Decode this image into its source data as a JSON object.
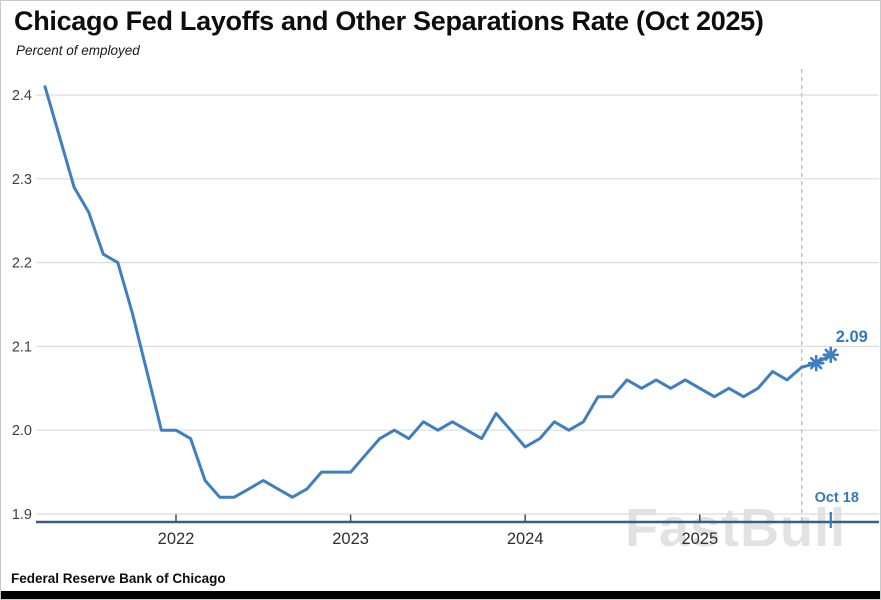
{
  "header": {
    "title": "Chicago Fed Layoffs and Other Separations Rate (Oct 2025)",
    "subtitle": "Percent of employed"
  },
  "footer": {
    "source": "Federal Reserve Bank of Chicago"
  },
  "watermark": "FastBull",
  "colors": {
    "line": "#3f7fbf",
    "axis": "#3a5f80",
    "grid": "#dcdcdc",
    "dashed_line": "#bdbdbd",
    "annotation": "#3478be",
    "tick": "#4d4d4d",
    "y_label": "#3f3f3f",
    "x_label": "#2f2f2f",
    "bottom_bar": "#000000"
  },
  "chart_data": {
    "type": "line",
    "title": "Chicago Fed Layoffs and Other Separations Rate (Oct 2025)",
    "ylabel": "Percent of employed",
    "ylim": [
      1.9,
      2.41
    ],
    "yticks": [
      1.9,
      2.0,
      2.1,
      2.2,
      2.3,
      2.4
    ],
    "xticks": [
      "2022",
      "2023",
      "2024",
      "2025"
    ],
    "grid": true,
    "legend_position": "none",
    "series": [
      {
        "name": "Layoffs and other separations rate (percent of employed)",
        "points": [
          [
            "2021-04",
            2.41
          ],
          [
            "2021-05",
            2.35
          ],
          [
            "2021-06",
            2.29
          ],
          [
            "2021-07",
            2.26
          ],
          [
            "2021-08",
            2.21
          ],
          [
            "2021-09",
            2.2
          ],
          [
            "2021-10",
            2.14
          ],
          [
            "2021-11",
            2.07
          ],
          [
            "2021-12",
            2.0
          ],
          [
            "2022-01",
            2.0
          ],
          [
            "2022-02",
            1.99
          ],
          [
            "2022-03",
            1.94
          ],
          [
            "2022-04",
            1.92
          ],
          [
            "2022-05",
            1.92
          ],
          [
            "2022-06",
            1.93
          ],
          [
            "2022-07",
            1.94
          ],
          [
            "2022-08",
            1.93
          ],
          [
            "2022-09",
            1.92
          ],
          [
            "2022-10",
            1.93
          ],
          [
            "2022-11",
            1.95
          ],
          [
            "2022-12",
            1.95
          ],
          [
            "2023-01",
            1.95
          ],
          [
            "2023-02",
            1.97
          ],
          [
            "2023-03",
            1.99
          ],
          [
            "2023-04",
            2.0
          ],
          [
            "2023-05",
            1.99
          ],
          [
            "2023-06",
            2.01
          ],
          [
            "2023-07",
            2.0
          ],
          [
            "2023-08",
            2.01
          ],
          [
            "2023-09",
            2.0
          ],
          [
            "2023-10",
            1.99
          ],
          [
            "2023-11",
            2.02
          ],
          [
            "2023-12",
            2.0
          ],
          [
            "2024-01",
            1.98
          ],
          [
            "2024-02",
            1.99
          ],
          [
            "2024-03",
            2.01
          ],
          [
            "2024-04",
            2.0
          ],
          [
            "2024-05",
            2.01
          ],
          [
            "2024-06",
            2.04
          ],
          [
            "2024-07",
            2.04
          ],
          [
            "2024-08",
            2.06
          ],
          [
            "2024-09",
            2.05
          ],
          [
            "2024-10",
            2.06
          ],
          [
            "2024-11",
            2.05
          ],
          [
            "2024-12",
            2.06
          ],
          [
            "2025-01",
            2.05
          ],
          [
            "2025-02",
            2.04
          ],
          [
            "2025-03",
            2.05
          ],
          [
            "2025-04",
            2.04
          ],
          [
            "2025-05",
            2.05
          ],
          [
            "2025-06",
            2.07
          ],
          [
            "2025-07",
            2.06
          ],
          [
            "2025-08",
            2.075
          ],
          [
            "2025-09",
            2.08
          ],
          [
            "2025-10",
            2.09
          ]
        ]
      }
    ],
    "starred_months": [
      "2025-09",
      "2025-10"
    ],
    "dashed_vline_month": "2025-08",
    "latest_point_label": {
      "text": "2.09",
      "month": "2025-10",
      "value": 2.09
    },
    "axis_date_label": {
      "text": "Oct 18",
      "month": "2025-10"
    }
  }
}
